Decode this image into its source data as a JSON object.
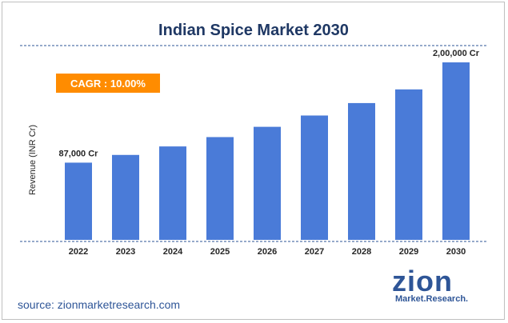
{
  "colors": {
    "bar": "#4a7bd8",
    "title": "#1f3864",
    "cagr_bg": "#ff8c00",
    "axis_dash": "#2e5597",
    "label": "#262626",
    "source": "#2e5597",
    "logo_blue": "#2e5597",
    "logo_orange": "#f7941d"
  },
  "header": {
    "title": "Indian Spice Market 2030"
  },
  "badge": {
    "cagr": "CAGR : 10.00%"
  },
  "footer": {
    "source": "source: zionmarketresearch.com"
  },
  "logo": {
    "name": "zion",
    "tagline": "Market.Research."
  },
  "chart_data": {
    "type": "bar",
    "title": "Indian Spice Market 2030",
    "xlabel": "",
    "ylabel": "Revenue (INR Cr)",
    "categories": [
      "2022",
      "2023",
      "2024",
      "2025",
      "2026",
      "2027",
      "2028",
      "2029",
      "2030"
    ],
    "values": [
      87000,
      95700,
      105270,
      115797,
      127377,
      140114,
      154126,
      169538,
      200000
    ],
    "ylim": [
      0,
      220000
    ],
    "grid": false,
    "annotations": [
      {
        "index": 0,
        "text": "87,000 Cr"
      },
      {
        "index": 8,
        "text": "2,00,000 Cr"
      }
    ]
  }
}
